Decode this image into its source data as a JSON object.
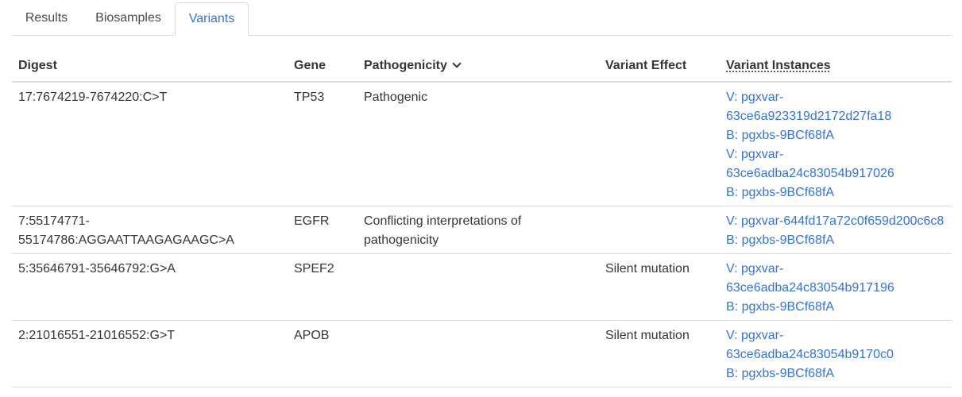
{
  "tabs": [
    {
      "label": "Results",
      "active": false
    },
    {
      "label": "Biosamples",
      "active": false
    },
    {
      "label": "Variants",
      "active": true
    }
  ],
  "table": {
    "headers": {
      "digest": "Digest",
      "gene": "Gene",
      "pathogenicity": "Pathogenicity",
      "variant_effect": "Variant Effect",
      "variant_instances": "Variant Instances"
    },
    "rows": [
      {
        "digest": "17:7674219-7674220:C>T",
        "gene": "TP53",
        "pathogenicity": "Pathogenic",
        "variant_effect": "",
        "instances": [
          {
            "variant": "V: pgxvar-63ce6a923319d2172d27fa18",
            "biosample": "B: pgxbs-9BCf68fA"
          },
          {
            "variant": "V: pgxvar-63ce6adba24c83054b917026",
            "biosample": "B: pgxbs-9BCf68fA"
          }
        ]
      },
      {
        "digest": "7:55174771-55174786:AGGAATTAAGAGAAGC>A",
        "gene": "EGFR",
        "pathogenicity": "Conflicting interpretations of pathogenicity",
        "variant_effect": "",
        "instances": [
          {
            "variant": "V: pgxvar-644fd17a72c0f659d200c6c8",
            "biosample": "B: pgxbs-9BCf68fA"
          }
        ]
      },
      {
        "digest": "5:35646791-35646792:G>A",
        "gene": "SPEF2",
        "pathogenicity": "",
        "variant_effect": "Silent mutation",
        "instances": [
          {
            "variant": "V: pgxvar-63ce6adba24c83054b917196",
            "biosample": "B: pgxbs-9BCf68fA"
          }
        ]
      },
      {
        "digest": "2:21016551-21016552:G>T",
        "gene": "APOB",
        "pathogenicity": "",
        "variant_effect": "Silent mutation",
        "instances": [
          {
            "variant": "V: pgxvar-63ce6adba24c83054b9170c0",
            "biosample": "B: pgxbs-9BCf68fA"
          }
        ]
      }
    ]
  }
}
